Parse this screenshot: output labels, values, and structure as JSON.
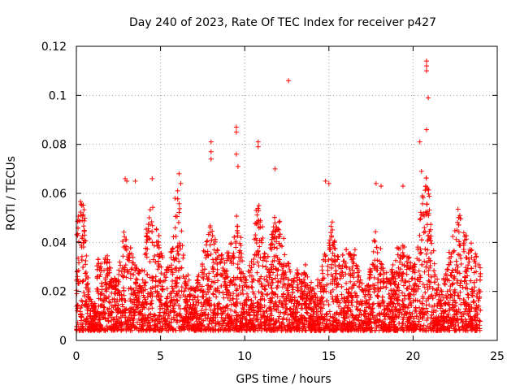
{
  "chart_data": {
    "type": "scatter",
    "title": "Day 240 of 2023, Rate Of TEC Index for receiver p427",
    "xlabel": "GPS time / hours",
    "ylabel": "ROTI / TECUs",
    "xlim": [
      0,
      25
    ],
    "ylim": [
      0,
      0.12
    ],
    "x_ticks": [
      0,
      5,
      10,
      15,
      20,
      25
    ],
    "x_tick_labels": [
      "0",
      "5",
      "10",
      "15",
      "20",
      "25"
    ],
    "y_ticks": [
      0,
      0.02,
      0.04,
      0.06,
      0.08,
      0.1,
      0.12
    ],
    "y_tick_labels": [
      "0",
      "0.02",
      "0.04",
      "0.06",
      "0.08",
      "0.1",
      "0.12"
    ],
    "grid": true,
    "marker": "+",
    "marker_color": "#ff0000",
    "series": [
      {
        "name": "ROTI",
        "notable_points": {
          "x": [
            8.0,
            8.0,
            8.0,
            9.5,
            9.5,
            9.5,
            9.6,
            10.8,
            10.8,
            11.8,
            12.6,
            20.4,
            20.5,
            20.8,
            20.8,
            20.8,
            20.9,
            20.8,
            2.9,
            3.0,
            3.5,
            4.5,
            6.1,
            6.2,
            14.8,
            15.0,
            17.8,
            18.1,
            19.4
          ],
          "y": [
            0.081,
            0.077,
            0.074,
            0.087,
            0.085,
            0.076,
            0.071,
            0.081,
            0.079,
            0.07,
            0.106,
            0.081,
            0.069,
            0.114,
            0.112,
            0.11,
            0.099,
            0.086,
            0.066,
            0.065,
            0.065,
            0.066,
            0.068,
            0.064,
            0.065,
            0.064,
            0.064,
            0.063,
            0.063
          ]
        }
      }
    ]
  }
}
